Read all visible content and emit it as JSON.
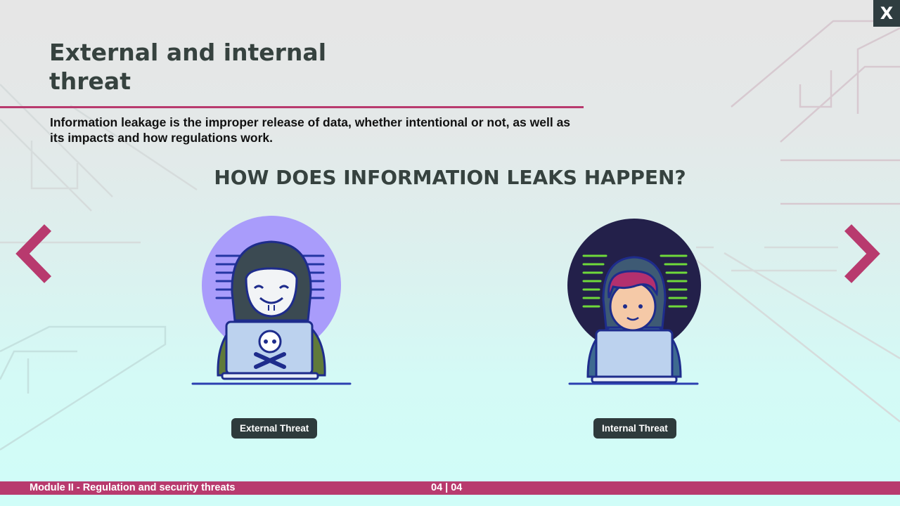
{
  "window": {
    "close_label": "X"
  },
  "slide": {
    "title": "External and internal threat",
    "intro": "Information leakage is the improper release of data, whether intentional or not, as well as its impacts and how regulations work.",
    "section_heading": "HOW DOES INFORMATION LEAKS HAPPEN?"
  },
  "navigation": {
    "prev_icon": "chevron-left-icon",
    "next_icon": "chevron-right-icon"
  },
  "cards": [
    {
      "label": "External Threat",
      "illustration": "hacker-with-mask-laptop-skull"
    },
    {
      "label": "Internal Threat",
      "illustration": "hooded-boy-laptop-code"
    }
  ],
  "footer": {
    "module_title": "Module II - Regulation and security threats",
    "page_indicator": "04 | 04"
  },
  "colors": {
    "accent": "#b83a6e",
    "dark": "#2f3d40",
    "heading": "#36423f"
  }
}
